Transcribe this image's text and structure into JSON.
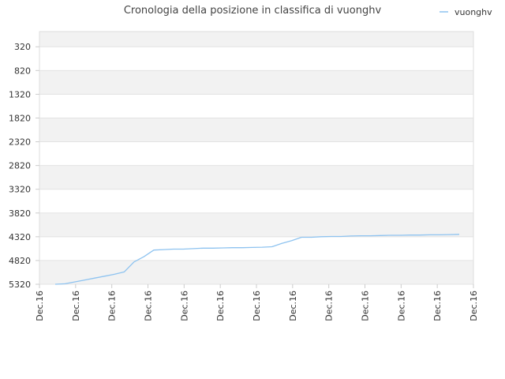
{
  "chart_data": {
    "type": "line",
    "title": "Cronologia della posizione in classifica di vuonghv",
    "legend": {
      "position": "top-right",
      "entries": [
        "vuonghv"
      ]
    },
    "series": [
      {
        "name": "vuonghv",
        "color": "#8ec3f0",
        "values": [
          5320,
          5310,
          5270,
          5230,
          5190,
          5150,
          5110,
          5060,
          4850,
          4740,
          4600,
          4590,
          4580,
          4580,
          4570,
          4560,
          4560,
          4555,
          4550,
          4550,
          4545,
          4540,
          4530,
          4460,
          4400,
          4330,
          4330,
          4320,
          4315,
          4315,
          4305,
          4300,
          4300,
          4295,
          4290,
          4290,
          4285,
          4285,
          4280,
          4280,
          4275,
          4270
        ]
      }
    ],
    "x_tick_labels": [
      "Dec.16",
      "Dec.16",
      "Dec.16",
      "Dec.16",
      "Dec.16",
      "Dec.16",
      "Dec.16",
      "Dec.16",
      "Dec.16",
      "Dec.16",
      "Dec.16",
      "Dec.16",
      "Dec.16"
    ],
    "y_tick_labels": [
      "320",
      "820",
      "1320",
      "1820",
      "2320",
      "2820",
      "3320",
      "3820",
      "4320",
      "4820",
      "5320"
    ],
    "y_ticks": [
      320,
      820,
      1320,
      1820,
      2320,
      2820,
      3320,
      3820,
      4320,
      4820,
      5320
    ],
    "ylim": [
      5320,
      0
    ],
    "y_inverted": true,
    "grid": true,
    "band_colors": [
      "#f2f2f2",
      "#ffffff"
    ]
  }
}
